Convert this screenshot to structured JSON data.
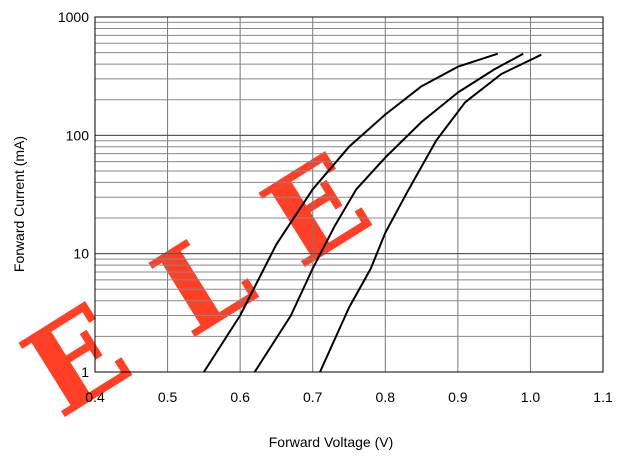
{
  "chart_data": {
    "type": "line",
    "xlabel": "Forward Voltage (V)",
    "ylabel": "Forward Current (mA)",
    "xlim": [
      0.4,
      1.1
    ],
    "ylim": [
      1,
      1000
    ],
    "yscale": "log",
    "grid": true,
    "x_ticks": [
      "0.4",
      "0.5",
      "0.6",
      "0.7",
      "0.8",
      "0.9",
      "1.0",
      "1.1"
    ],
    "y_ticks": [
      "1",
      "10",
      "100",
      "1000"
    ],
    "series": [
      {
        "x": [
          0.55,
          0.6,
          0.65,
          0.7,
          0.75,
          0.8,
          0.85,
          0.9,
          0.955
        ],
        "y": [
          1.0,
          3.0,
          12,
          35,
          80,
          150,
          260,
          380,
          490
        ]
      },
      {
        "x": [
          0.62,
          0.67,
          0.7,
          0.73,
          0.76,
          0.8,
          0.85,
          0.9,
          0.95,
          0.99
        ],
        "y": [
          1.0,
          3.0,
          7.5,
          17,
          35,
          65,
          130,
          230,
          360,
          490
        ]
      },
      {
        "x": [
          0.71,
          0.75,
          0.78,
          0.8,
          0.83,
          0.87,
          0.91,
          0.96,
          1.015
        ],
        "y": [
          1.0,
          3.5,
          7.5,
          15,
          33,
          90,
          190,
          330,
          480
        ]
      }
    ],
    "watermark": "ELE"
  }
}
